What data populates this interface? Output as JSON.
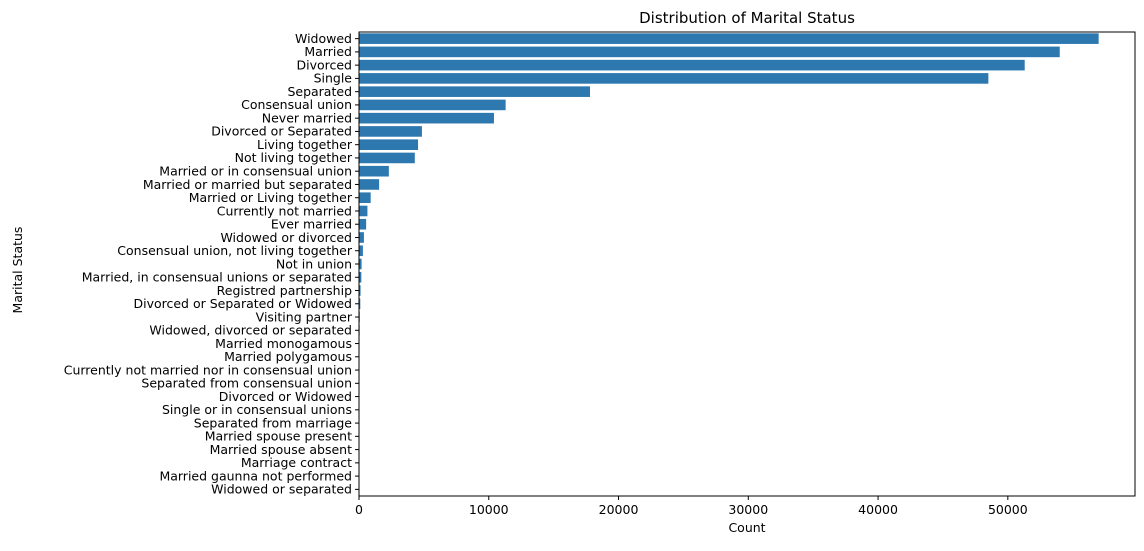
{
  "colors": {
    "bar": "#2e78b0",
    "axis": "#000000",
    "background": "#ffffff"
  },
  "chart_data": {
    "type": "bar",
    "orientation": "horizontal",
    "title": "Distribution of Marital Status",
    "xlabel": "Count",
    "ylabel": "Marital Status",
    "xlim": [
      0,
      59800
    ],
    "xticks": [
      0,
      10000,
      20000,
      30000,
      40000,
      50000
    ],
    "grid": false,
    "categories": [
      "Widowed",
      "Married",
      "Divorced",
      "Single",
      "Separated",
      "Consensual union",
      "Never married",
      "Divorced or Separated",
      "Living together",
      "Not living together",
      "Married or in consensual union",
      "Married or married but separated",
      "Married or Living together",
      "Currently not married",
      "Ever married",
      "Widowed or divorced",
      "Consensual union, not living together",
      "Not in union",
      "Married, in consensual unions or separated",
      "Registred partnership",
      "Divorced or Separated or Widowed",
      "Visiting partner",
      "Widowed, divorced or separated",
      "Married monogamous",
      "Married polygamous",
      "Currently not married nor in consensual union",
      "Separated from consensual union",
      "Divorced or Widowed",
      "Single or in consensual unions",
      "Separated from marriage",
      "Married spouse present",
      "Married spouse absent",
      "Marriage contract",
      "Married gaunna not performed",
      "Widowed or separated"
    ],
    "values": [
      57000,
      54000,
      51300,
      48500,
      17800,
      11300,
      10400,
      4850,
      4550,
      4300,
      2300,
      1550,
      900,
      650,
      550,
      380,
      300,
      200,
      180,
      120,
      100,
      60,
      50,
      40,
      30,
      25,
      20,
      15,
      12,
      10,
      8,
      6,
      5,
      4,
      3
    ]
  }
}
